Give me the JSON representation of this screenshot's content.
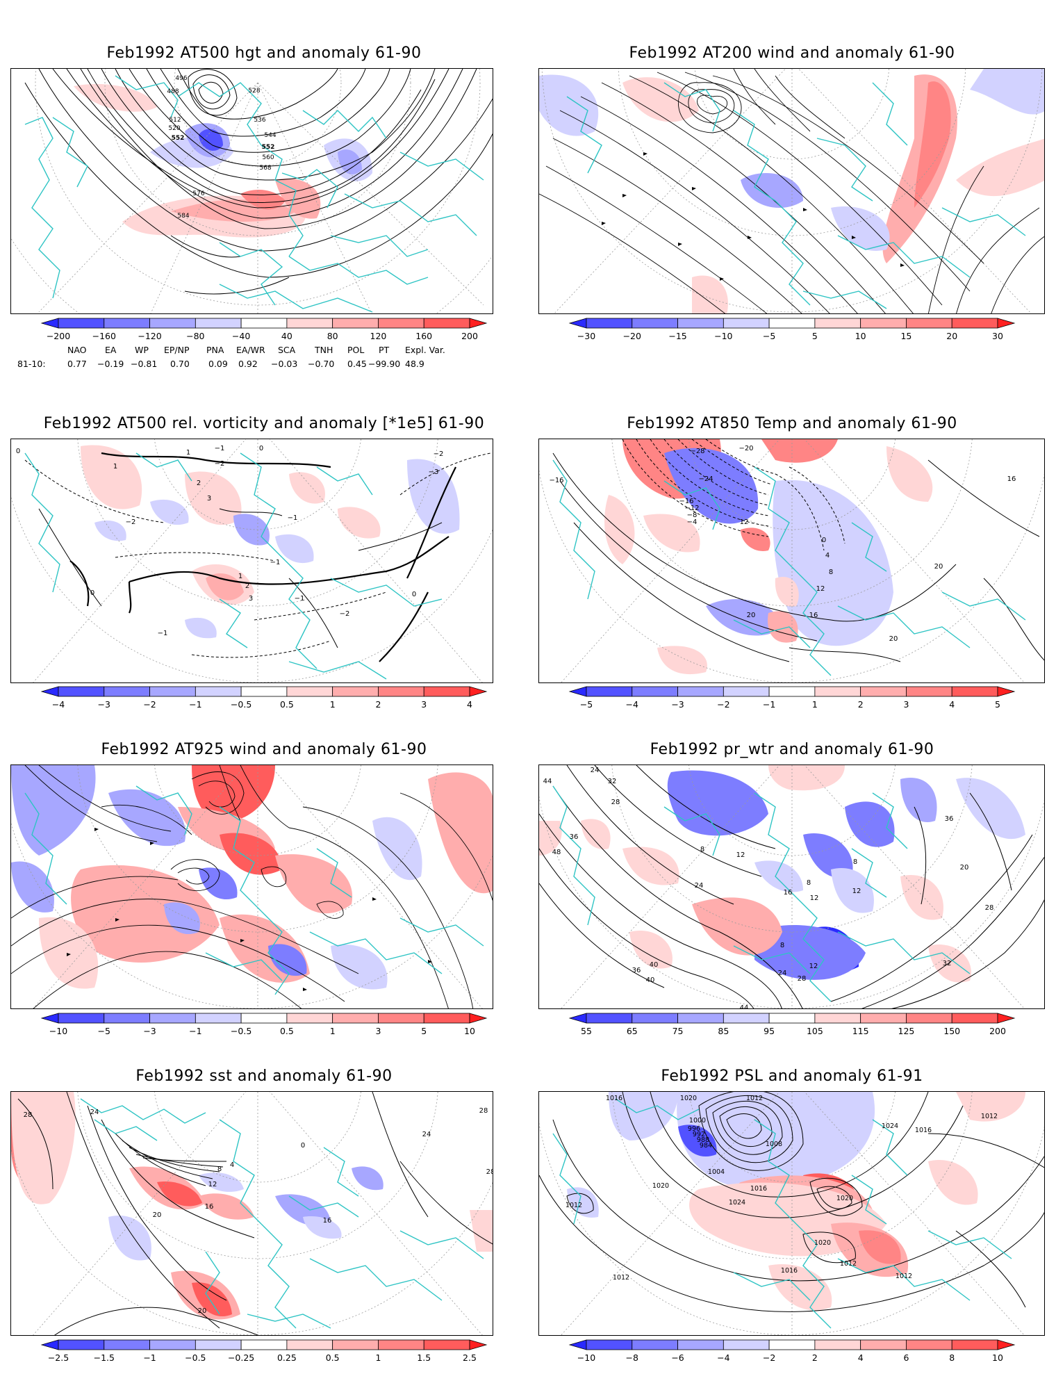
{
  "panels": [
    {
      "id": "p1",
      "title": "Feb1992 AT500 hgt and anomaly 61-90",
      "ticks": [
        "−200",
        "−160",
        "−120",
        "−80",
        "−40",
        "40",
        "80",
        "120",
        "160",
        "200"
      ],
      "colors": [
        "#2a2aff",
        "#5252ff",
        "#7d7dff",
        "#a7a7ff",
        "#d2d2ff",
        "#ffffff",
        "#ffd6d6",
        "#ffadad",
        "#ff8585",
        "#ff5c5c",
        "#ff2020"
      ],
      "contour_labels": [
        "496",
        "488",
        "512",
        "520",
        "528",
        "536",
        "544",
        "552",
        "552",
        "560",
        "568",
        "576",
        "584"
      ]
    },
    {
      "id": "p2",
      "title": "Feb1992 AT200 wind and anomaly 61-90",
      "ticks": [
        "−30",
        "−20",
        "−15",
        "−10",
        "−5",
        "5",
        "10",
        "15",
        "20",
        "30"
      ],
      "colors": [
        "#2a2aff",
        "#5252ff",
        "#7d7dff",
        "#a7a7ff",
        "#d2d2ff",
        "#ffffff",
        "#ffd6d6",
        "#ffadad",
        "#ff8585",
        "#ff5c5c",
        "#ff2020"
      ],
      "contour_labels": []
    },
    {
      "id": "p3",
      "title": "Feb1992 AT500 rel. vorticity and anomaly [*1e5] 61-90",
      "ticks": [
        "−4",
        "−3",
        "−2",
        "−1",
        "−0.5",
        "0.5",
        "1",
        "2",
        "3",
        "4"
      ],
      "colors": [
        "#2a2aff",
        "#5252ff",
        "#7d7dff",
        "#a7a7ff",
        "#d2d2ff",
        "#ffffff",
        "#ffd6d6",
        "#ffadad",
        "#ff8585",
        "#ff5c5c",
        "#ff2020"
      ],
      "contour_labels": [
        "0",
        "1",
        "3",
        "2",
        "1",
        "−2",
        "−1",
        "−2",
        "0",
        "−3",
        "−1",
        "1",
        "2",
        "3",
        "−1",
        "−2",
        "0",
        "−1",
        "0",
        "−1",
        "−2"
      ]
    },
    {
      "id": "p4",
      "title": "Feb1992 AT850 Temp and anomaly 61-90",
      "ticks": [
        "−5",
        "−4",
        "−3",
        "−2",
        "−1",
        "1",
        "2",
        "3",
        "4",
        "5"
      ],
      "colors": [
        "#2a2aff",
        "#5252ff",
        "#7d7dff",
        "#a7a7ff",
        "#d2d2ff",
        "#ffffff",
        "#ffd6d6",
        "#ffadad",
        "#ff8585",
        "#ff5c5c",
        "#ff2020"
      ],
      "contour_labels": [
        "−28",
        "−20",
        "−24",
        "−16",
        "−12",
        "−8",
        "−4",
        "0",
        "4",
        "8",
        "12",
        "16",
        "20",
        "16",
        "12",
        "20",
        "20",
        "−16"
      ]
    },
    {
      "id": "p5",
      "title": "Feb1992 AT925 wind and anomaly 61-90",
      "ticks": [
        "−10",
        "−5",
        "−3",
        "−1",
        "−0.5",
        "0.5",
        "1",
        "3",
        "5",
        "10"
      ],
      "colors": [
        "#2a2aff",
        "#5252ff",
        "#7d7dff",
        "#a7a7ff",
        "#d2d2ff",
        "#ffffff",
        "#ffd6d6",
        "#ffadad",
        "#ff8585",
        "#ff5c5c",
        "#ff2020"
      ],
      "contour_labels": []
    },
    {
      "id": "p6",
      "title": "Feb1992 pr_wtr and anomaly 61-90",
      "ticks": [
        "55",
        "65",
        "75",
        "85",
        "95",
        "105",
        "115",
        "125",
        "150",
        "200"
      ],
      "colors": [
        "#2a2aff",
        "#5252ff",
        "#7d7dff",
        "#a7a7ff",
        "#d2d2ff",
        "#ffffff",
        "#ffd6d6",
        "#ffadad",
        "#ff8585",
        "#ff5c5c",
        "#ff2020"
      ],
      "contour_labels": [
        "24",
        "32",
        "28",
        "36",
        "44",
        "48",
        "8",
        "12",
        "24",
        "16",
        "8",
        "12",
        "12",
        "8",
        "20",
        "28",
        "32",
        "36",
        "40",
        "44",
        "24",
        "28",
        "36",
        "40",
        "12",
        "8"
      ]
    },
    {
      "id": "p7",
      "title": "Feb1992 sst and anomaly 61-90",
      "ticks": [
        "−2.5",
        "−1.5",
        "−1",
        "−0.5",
        "−0.25",
        "0.25",
        "0.5",
        "1",
        "1.5",
        "2.5"
      ],
      "colors": [
        "#2a2aff",
        "#5252ff",
        "#7d7dff",
        "#a7a7ff",
        "#d2d2ff",
        "#ffffff",
        "#ffd6d6",
        "#ffadad",
        "#ff8585",
        "#ff5c5c",
        "#ff2020"
      ],
      "contour_labels": [
        "28",
        "24",
        "20",
        "16",
        "12",
        "8",
        "4",
        "0",
        "24",
        "28",
        "16",
        "20",
        "28"
      ]
    },
    {
      "id": "p8",
      "title": "Feb1992 PSL and anomaly 61-91",
      "ticks": [
        "−10",
        "−8",
        "−6",
        "−4",
        "−2",
        "2",
        "4",
        "6",
        "8",
        "10"
      ],
      "colors": [
        "#2a2aff",
        "#5252ff",
        "#7d7dff",
        "#a7a7ff",
        "#d2d2ff",
        "#ffffff",
        "#ffd6d6",
        "#ffadad",
        "#ff8585",
        "#ff5c5c",
        "#ff2020"
      ],
      "contour_labels": [
        "1016",
        "1020",
        "1012",
        "1024",
        "1016",
        "1012",
        "1000",
        "996",
        "992",
        "988",
        "984",
        "1008",
        "1004",
        "1016",
        "1020",
        "1024",
        "1020",
        "1012",
        "1016",
        "1020",
        "1012",
        "1012",
        "1012"
      ]
    }
  ],
  "indices": {
    "row_label": "81-10:",
    "headers": [
      "NAO",
      "EA",
      "WP",
      "EP/NP",
      "PNA",
      "EA/WR",
      "SCA",
      "TNH",
      "POL",
      "PT",
      "Expl. Var."
    ],
    "values": [
      "0.77",
      "−0.19",
      "−0.81",
      "0.70",
      "0.09",
      "0.92",
      "−0.03",
      "−0.70",
      "0.45",
      "−99.90",
      "48.9"
    ]
  },
  "style": {
    "coast": "#2ec4c4",
    "contour": "#000000",
    "grid": "#9a9a9a"
  }
}
